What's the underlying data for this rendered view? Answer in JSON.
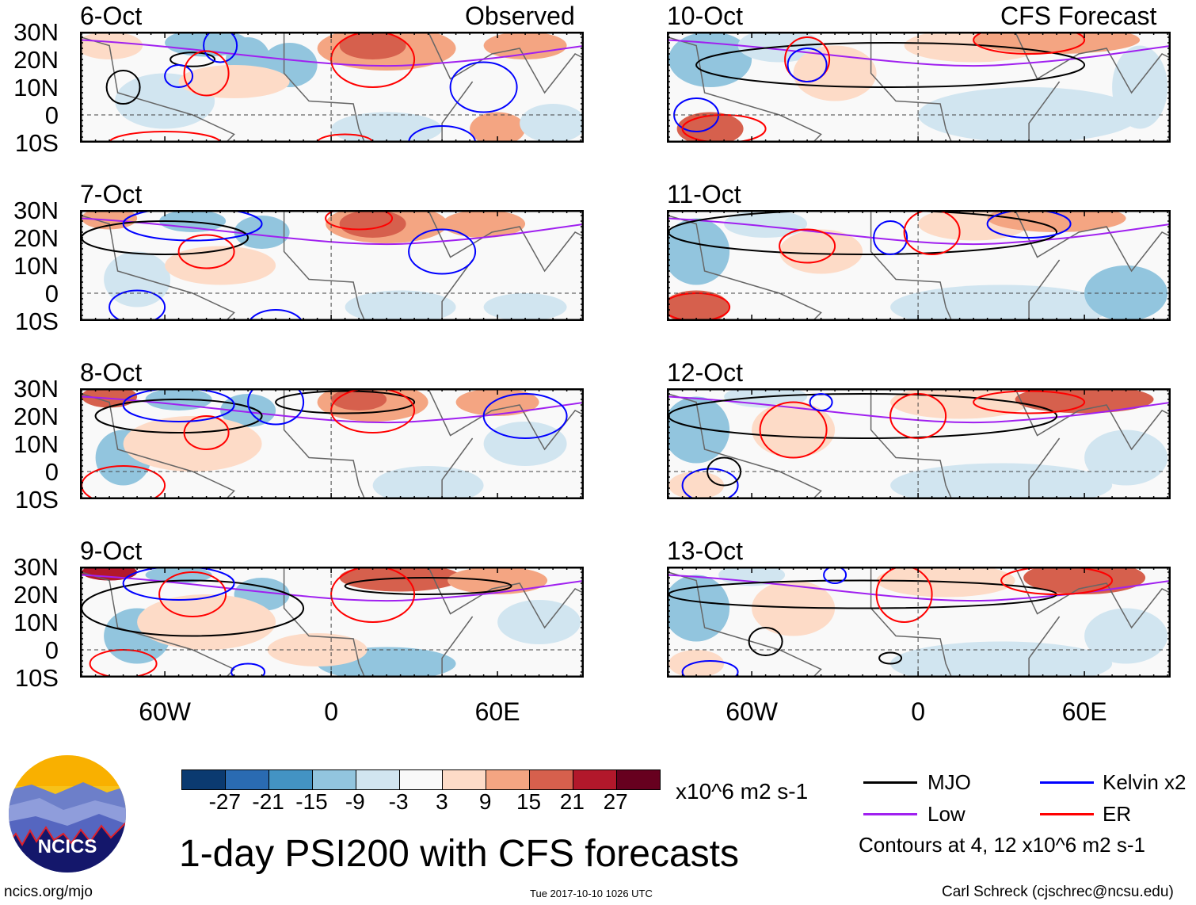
{
  "header": {
    "left_label": "Observed",
    "right_label": "CFS Forecast"
  },
  "panels": {
    "observed": [
      {
        "date": "6-Oct"
      },
      {
        "date": "7-Oct"
      },
      {
        "date": "8-Oct"
      },
      {
        "date": "9-Oct"
      }
    ],
    "forecast": [
      {
        "date": "10-Oct"
      },
      {
        "date": "11-Oct"
      },
      {
        "date": "12-Oct"
      },
      {
        "date": "13-Oct"
      }
    ]
  },
  "axes": {
    "lat_labels": [
      "30N",
      "20N",
      "10N",
      "0",
      "10S"
    ],
    "lon_labels": [
      "60W",
      "0",
      "60E"
    ]
  },
  "colorbar": {
    "levels": [
      "-27",
      "-21",
      "-15",
      "-9",
      "-3",
      "3",
      "9",
      "15",
      "21",
      "27"
    ],
    "colors": [
      "#0b3a70",
      "#2a6bb2",
      "#4393c3",
      "#92c5de",
      "#d1e5f0",
      "#f9f9f9",
      "#fddbc7",
      "#f4a582",
      "#d6604d",
      "#b2182b",
      "#67001f"
    ],
    "units": "x10^6 m2 s-1"
  },
  "legend": {
    "items": [
      {
        "label": "MJO",
        "color": "#000000"
      },
      {
        "label": "Kelvin x2",
        "color": "#0000ff"
      },
      {
        "label": "Low",
        "color": "#a020f0"
      },
      {
        "label": "ER",
        "color": "#ff0000"
      }
    ],
    "contours_note": "Contours at 4, 12 x10^6 m2 s-1"
  },
  "title": "1-day PSI200 with CFS forecasts",
  "footer": {
    "url": "ncics.org/mjo",
    "timestamp": "Tue 2017-10-10 1026 UTC",
    "credit": "Carl Schreck (cjschrec@ncsu.edu)"
  },
  "logo": {
    "text": "NCICS"
  }
}
